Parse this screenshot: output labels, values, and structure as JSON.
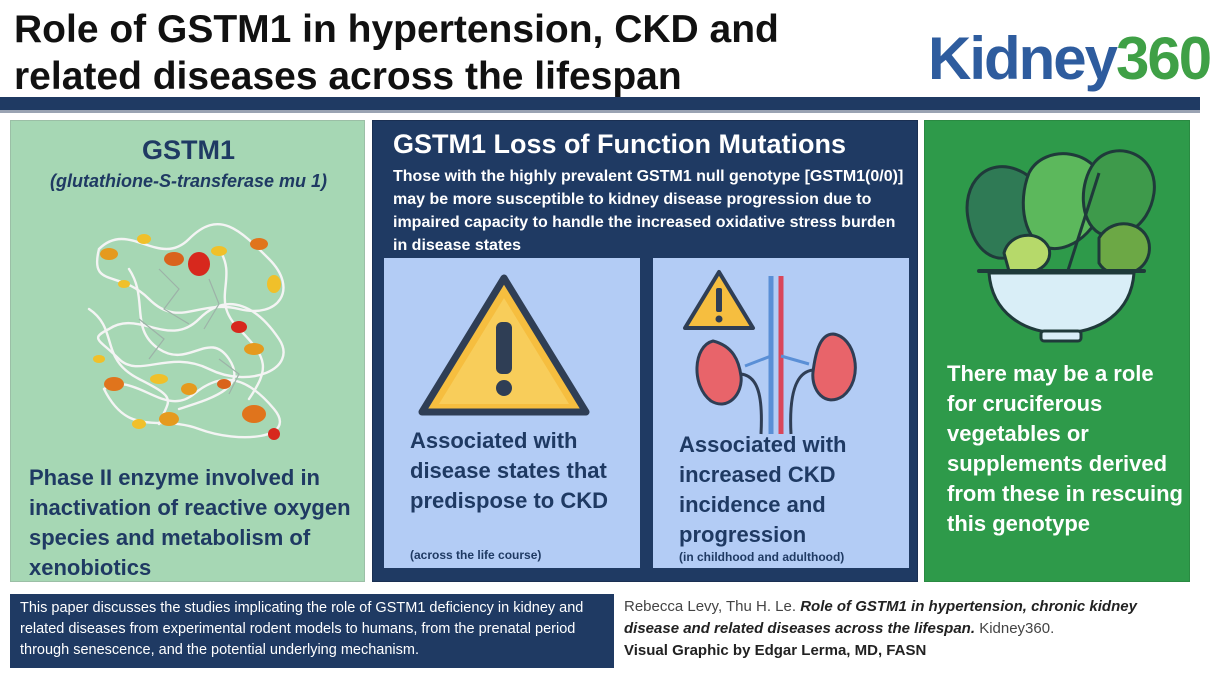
{
  "header": {
    "title": "Role of GSTM1 in hypertension, CKD and related diseases across the lifespan",
    "logo_word": "Kidney",
    "logo_num": "360"
  },
  "left_panel": {
    "title": "GSTM1",
    "subtitle": "(glutathione-S-transferase mu 1)",
    "description": "Phase II enzyme involved in inactivation of reactive oxygen species and metabolism of xenobiotics"
  },
  "middle_panel": {
    "title": "GSTM1 Loss of Function Mutations",
    "body": "Those with the highly prevalent GSTM1 null genotype [GSTM1(0/0)] may be more susceptible to kidney disease progression due to impaired capacity to handle the increased oxidative stress burden in disease states",
    "card_a": {
      "text": "Associated with disease states that predispose to CKD",
      "note": "(across the life course)"
    },
    "card_b": {
      "text": "Associated with increased CKD incidence and progression",
      "note": "(in childhood and adulthood)"
    }
  },
  "right_panel": {
    "text": "There may be a role for cruciferous vegetables or supplements derived from these in rescuing this genotype"
  },
  "footer": {
    "summary": "This paper discusses the studies implicating the role of GSTM1 deficiency in kidney and related diseases from experimental rodent models to humans, from the prenatal period through senescence, and the potential underlying mechanism.",
    "authors": "Rebecca Levy, Thu H. Le.",
    "paper_title": "Role of GSTM1 in hypertension, chronic kidney disease and related diseases across the lifespan.",
    "journal": "Kidney360.",
    "credit": "Visual Graphic by Edgar Lerma, MD, FASN"
  },
  "colors": {
    "navy": "#1f3a63",
    "mint": "#a6d7b4",
    "green": "#2e9a4a",
    "light_blue": "#b3ccf5",
    "warning": "#f6be3f"
  }
}
